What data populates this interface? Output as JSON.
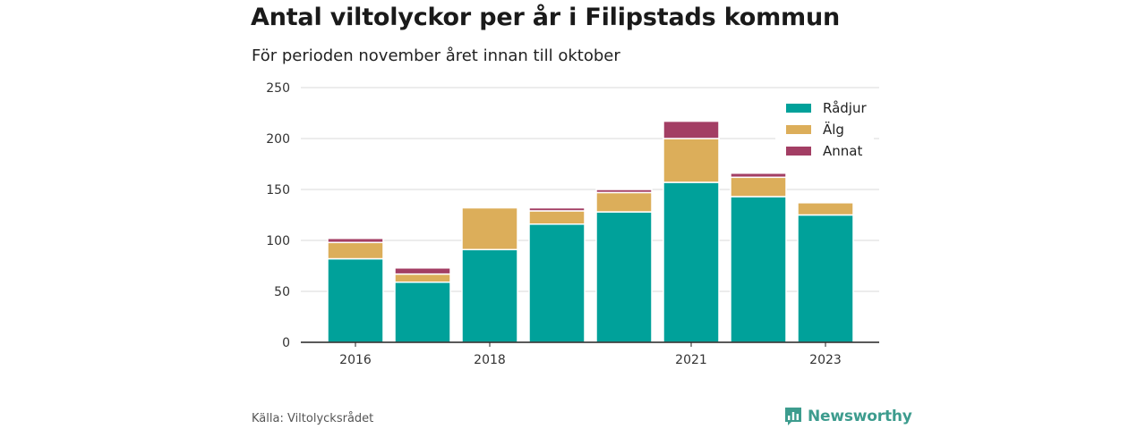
{
  "title": "Antal viltolyckor per år i Filipstads kommun",
  "subtitle": "För perioden november året innan till oktober",
  "source": "Källa: Viltolycksrådet",
  "brand": {
    "name": "Newsworthy",
    "icon": "newsworthy-chart-icon",
    "color": "#3d9c8e"
  },
  "chart_data": {
    "type": "bar",
    "stacked": true,
    "title": "Antal viltolyckor per år i Filipstads kommun",
    "subtitle": "För perioden november året innan till oktober",
    "xlabel": "",
    "ylabel": "",
    "x": [
      2016,
      2017,
      2018,
      2019,
      2020,
      2021,
      2022,
      2023
    ],
    "x_tick_labels": [
      "2016",
      "2018",
      "2021",
      "2023"
    ],
    "x_tick_positions": [
      2016,
      2018,
      2021,
      2023
    ],
    "ylim": [
      0,
      250
    ],
    "yticks": [
      0,
      50,
      100,
      150,
      200,
      250
    ],
    "grid": true,
    "legend_position": "top-right",
    "series": [
      {
        "name": "Rådjur",
        "color": "#00a19a",
        "values": [
          82,
          59,
          91,
          116,
          128,
          157,
          143,
          125
        ]
      },
      {
        "name": "Älg",
        "color": "#dcae5a",
        "values": [
          16,
          8,
          41,
          13,
          19,
          43,
          19,
          12
        ]
      },
      {
        "name": "Annat",
        "color": "#a33e64",
        "values": [
          4,
          6,
          0,
          3,
          3,
          17,
          4,
          0
        ]
      }
    ]
  }
}
